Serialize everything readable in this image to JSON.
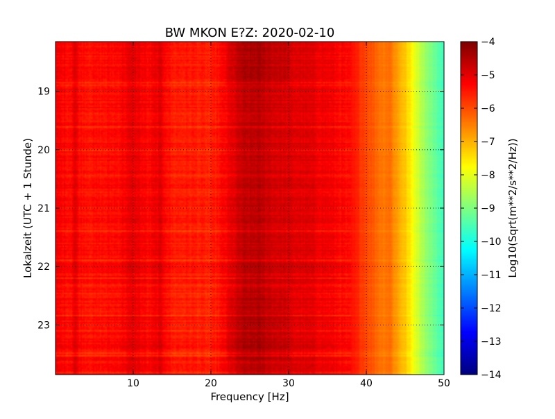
{
  "chart_data": {
    "type": "heatmap",
    "title": "BW MKON E?Z: 2020-02-10",
    "xlabel": "Frequency [Hz]",
    "ylabel": "Lokalzeit (UTC + 1 Stunde)",
    "xlim": [
      0,
      50
    ],
    "ylim_hours": [
      18.15,
      23.85
    ],
    "y_inverted": true,
    "x_ticks": [
      10,
      20,
      30,
      40,
      50
    ],
    "x_tick_labels": [
      "10",
      "20",
      "30",
      "40",
      "50"
    ],
    "y_ticks": [
      19,
      20,
      21,
      22,
      23
    ],
    "y_tick_labels": [
      "19",
      "20",
      "21",
      "22",
      "23"
    ],
    "grid": true,
    "colorbar": {
      "label": "Log10(Sqrt(m**2/s**2/Hz))",
      "range": [
        -14,
        -4
      ],
      "colormap": "jet",
      "ticks": [
        -4,
        -5,
        -6,
        -7,
        -8,
        -9,
        -10,
        -11,
        -12,
        -13,
        -14
      ],
      "tick_labels": [
        "−4",
        "−5",
        "−6",
        "−7",
        "−8",
        "−9",
        "−10",
        "−11",
        "−12",
        "−13",
        "−14"
      ]
    },
    "frequency_profile_hz": [
      0,
      2,
      2.5,
      3,
      5,
      8,
      10,
      12,
      13.5,
      15,
      18,
      20,
      22,
      24,
      26,
      28,
      30,
      33,
      36,
      38,
      40,
      42,
      43,
      44,
      45,
      46,
      47,
      48,
      49,
      50
    ],
    "frequency_profile_value": [
      -5.2,
      -5.3,
      -4.9,
      -5.3,
      -5.4,
      -5.3,
      -5.0,
      -5.3,
      -5.0,
      -5.5,
      -5.5,
      -5.6,
      -5.2,
      -4.7,
      -4.6,
      -4.8,
      -4.9,
      -5.0,
      -5.2,
      -5.4,
      -5.9,
      -6.4,
      -6.3,
      -6.8,
      -7.2,
      -7.8,
      -8.4,
      -8.9,
      -9.3,
      -9.6
    ]
  }
}
